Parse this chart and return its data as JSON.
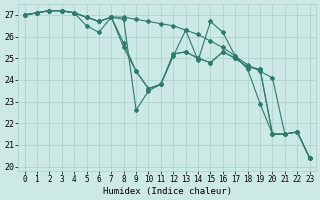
{
  "xlabel": "Humidex (Indice chaleur)",
  "background_color": "#cce9e5",
  "grid_color": "#aacfc9",
  "line_color": "#2d7a6f",
  "xlim": [
    -0.5,
    23.5
  ],
  "ylim": [
    19.8,
    27.5
  ],
  "yticks": [
    20,
    21,
    22,
    23,
    24,
    25,
    26,
    27
  ],
  "xticks": [
    0,
    1,
    2,
    3,
    4,
    5,
    6,
    7,
    8,
    9,
    10,
    11,
    12,
    13,
    14,
    15,
    16,
    17,
    18,
    19,
    20,
    21,
    22,
    23
  ],
  "lines": [
    {
      "x": [
        0,
        1,
        2,
        3,
        4,
        5,
        6,
        7,
        8,
        9,
        10,
        11,
        12,
        13,
        14,
        15,
        16,
        17,
        18,
        19,
        20,
        21,
        22,
        23
      ],
      "y": [
        27.0,
        27.1,
        27.2,
        27.2,
        27.1,
        26.9,
        26.7,
        26.9,
        26.9,
        26.8,
        26.7,
        26.6,
        26.5,
        26.3,
        26.1,
        25.8,
        25.5,
        25.1,
        24.7,
        24.4,
        24.1,
        21.5,
        21.6,
        20.4
      ]
    },
    {
      "x": [
        0,
        1,
        2,
        3,
        4,
        5,
        6,
        7,
        8,
        9,
        10,
        11,
        12,
        13,
        14,
        15,
        16,
        17,
        18,
        19,
        20,
        21,
        22,
        23
      ],
      "y": [
        27.0,
        27.1,
        27.2,
        27.2,
        27.1,
        26.5,
        26.2,
        26.9,
        25.5,
        24.4,
        23.6,
        23.8,
        25.2,
        25.3,
        25.0,
        24.8,
        25.3,
        25.0,
        24.6,
        24.5,
        21.5,
        21.5,
        21.6,
        20.4
      ]
    },
    {
      "x": [
        0,
        1,
        2,
        3,
        4,
        5,
        6,
        7,
        8,
        9,
        10,
        11,
        12,
        13,
        14,
        15,
        16,
        17,
        18,
        19,
        20,
        21,
        22,
        23
      ],
      "y": [
        27.0,
        27.1,
        27.2,
        27.2,
        27.1,
        26.9,
        26.7,
        26.9,
        26.8,
        22.6,
        23.5,
        23.8,
        25.1,
        26.3,
        24.9,
        26.7,
        26.2,
        25.1,
        24.5,
        22.9,
        21.5,
        21.5,
        21.6,
        20.4
      ]
    },
    {
      "x": [
        0,
        1,
        2,
        3,
        4,
        5,
        6,
        7,
        8,
        9,
        10,
        11,
        12,
        13,
        14,
        15,
        16,
        17,
        18,
        19,
        20,
        21,
        22,
        23
      ],
      "y": [
        27.0,
        27.1,
        27.2,
        27.2,
        27.1,
        26.9,
        26.7,
        26.9,
        25.7,
        24.4,
        23.6,
        23.8,
        25.2,
        25.3,
        25.0,
        24.8,
        25.3,
        25.0,
        24.6,
        24.5,
        21.5,
        21.5,
        21.6,
        20.4
      ]
    }
  ]
}
